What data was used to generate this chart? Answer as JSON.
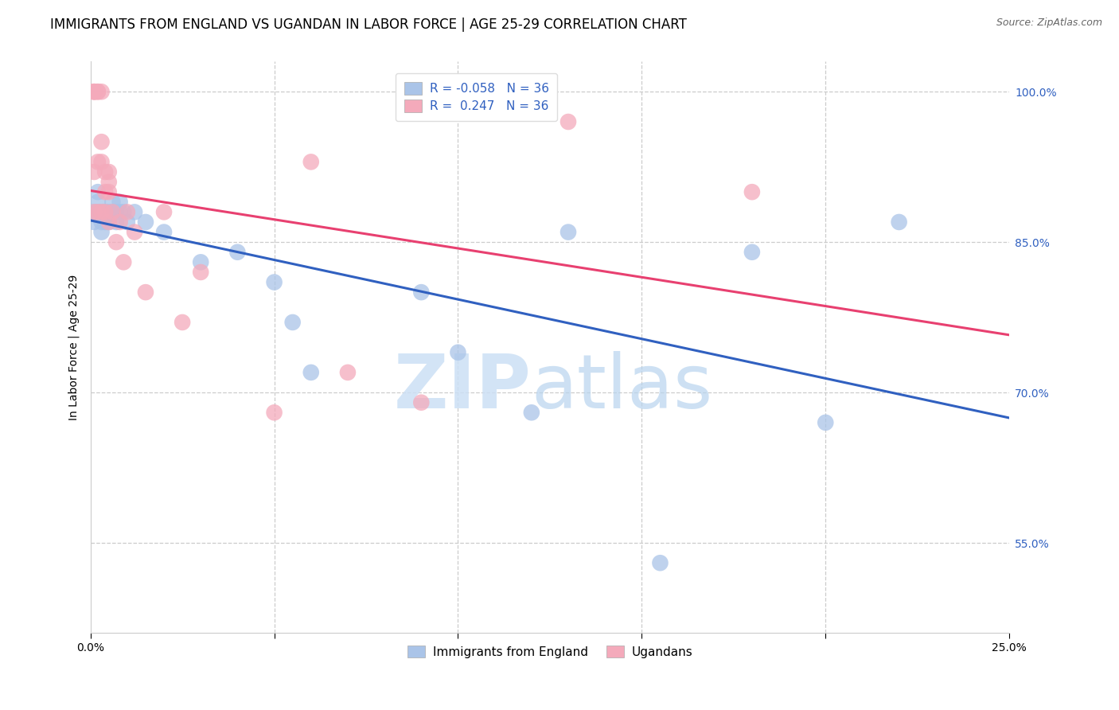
{
  "title": "IMMIGRANTS FROM ENGLAND VS UGANDAN IN LABOR FORCE | AGE 25-29 CORRELATION CHART",
  "source": "Source: ZipAtlas.com",
  "ylabel": "In Labor Force | Age 25-29",
  "xlim": [
    0.0,
    0.25
  ],
  "ylim": [
    0.46,
    1.03
  ],
  "ytick_positions": [
    0.55,
    0.7,
    0.85,
    1.0
  ],
  "ytick_labels": [
    "55.0%",
    "70.0%",
    "85.0%",
    "100.0%"
  ],
  "xticklabels_left": "0.0%",
  "xticklabels_right": "25.0%",
  "R_england": -0.058,
  "R_uganda": 0.247,
  "N_england": 36,
  "N_uganda": 36,
  "england_color": "#aac4e8",
  "uganda_color": "#f4aabb",
  "england_line_color": "#3060c0",
  "uganda_line_color": "#e84070",
  "england_x": [
    0.001,
    0.001,
    0.002,
    0.002,
    0.002,
    0.003,
    0.003,
    0.003,
    0.004,
    0.004,
    0.005,
    0.005,
    0.006,
    0.006,
    0.007,
    0.007,
    0.008,
    0.008,
    0.009,
    0.01,
    0.012,
    0.015,
    0.02,
    0.03,
    0.04,
    0.05,
    0.055,
    0.06,
    0.09,
    0.1,
    0.12,
    0.13,
    0.155,
    0.18,
    0.2,
    0.22
  ],
  "england_y": [
    0.88,
    0.87,
    0.88,
    0.89,
    0.9,
    0.88,
    0.87,
    0.86,
    0.87,
    0.88,
    0.88,
    0.87,
    0.88,
    0.89,
    0.88,
    0.87,
    0.88,
    0.89,
    0.88,
    0.87,
    0.88,
    0.87,
    0.86,
    0.83,
    0.84,
    0.81,
    0.77,
    0.72,
    0.8,
    0.74,
    0.68,
    0.86,
    0.53,
    0.84,
    0.67,
    0.87
  ],
  "uganda_x": [
    0.001,
    0.001,
    0.001,
    0.001,
    0.001,
    0.002,
    0.002,
    0.002,
    0.002,
    0.003,
    0.003,
    0.003,
    0.003,
    0.004,
    0.004,
    0.004,
    0.005,
    0.005,
    0.005,
    0.005,
    0.006,
    0.007,
    0.008,
    0.009,
    0.01,
    0.012,
    0.015,
    0.02,
    0.025,
    0.03,
    0.05,
    0.06,
    0.07,
    0.09,
    0.13,
    0.18
  ],
  "uganda_y": [
    1.0,
    1.0,
    1.0,
    0.92,
    0.88,
    1.0,
    1.0,
    0.93,
    0.88,
    1.0,
    0.95,
    0.93,
    0.88,
    0.92,
    0.9,
    0.88,
    0.92,
    0.91,
    0.9,
    0.87,
    0.88,
    0.85,
    0.87,
    0.83,
    0.88,
    0.86,
    0.8,
    0.88,
    0.77,
    0.82,
    0.68,
    0.93,
    0.72,
    0.69,
    0.97,
    0.9
  ],
  "watermark_zip": "ZIP",
  "watermark_atlas": "atlas",
  "title_fontsize": 12,
  "axis_label_fontsize": 10,
  "tick_fontsize": 10,
  "legend_fontsize": 11
}
